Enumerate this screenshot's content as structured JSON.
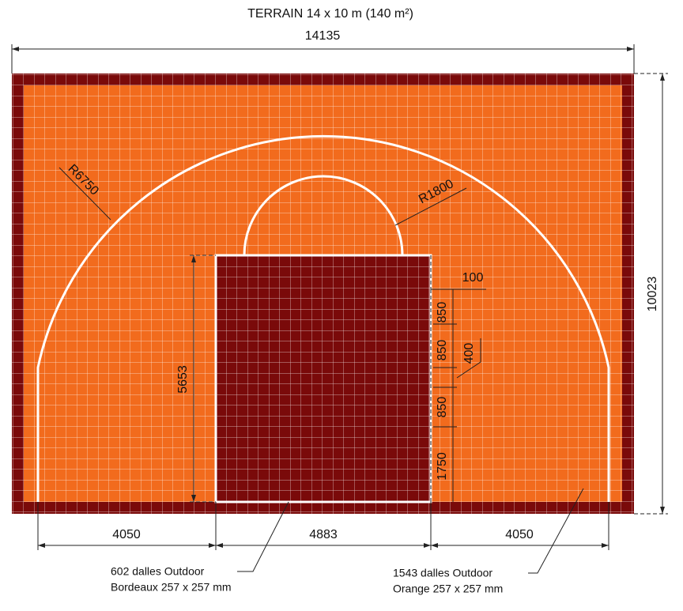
{
  "title": "TERRAIN 14 x 10 m (140 m²)",
  "dimensions": {
    "total_width": "14135",
    "total_height": "10023",
    "left_width": "4050",
    "key_width": "4883",
    "right_width": "4050",
    "key_length": "5653",
    "radius_3pt": "R6750",
    "radius_circle": "R1800",
    "offset": "100",
    "spacing": [
      "850",
      "850",
      "850",
      "1750"
    ],
    "block": "400"
  },
  "legend": [
    {
      "line1": "602 dalles Outdoor",
      "line2": "Bordeaux 257 x 257 mm"
    },
    {
      "line1": "1543 dalles Outdoor",
      "line2": "Orange 257 x 257 mm"
    }
  ]
}
